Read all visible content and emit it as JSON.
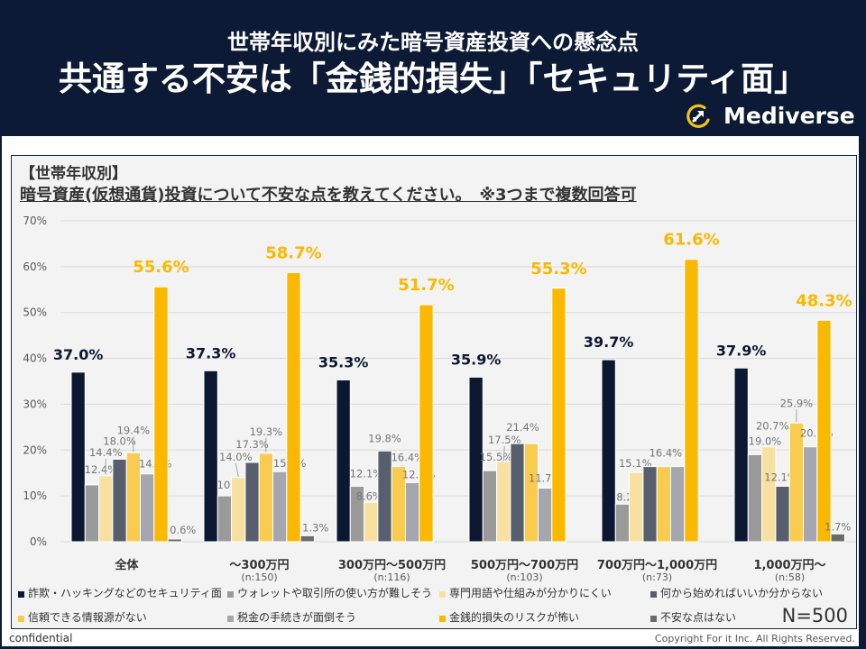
{
  "header": {
    "subtitle": "世帯年収別にみた暗号資産投資への懸念点",
    "title": "共通する不安は「金銭的損失」「セキュリティ面」",
    "logo_text": "Mediverse",
    "logo_icon": "rocket-crescent-icon"
  },
  "card": {
    "tag": "【世帯年収別】",
    "question": "暗号資産(仮想通貨)投資について不安な点を教えてください。　※3つまで複数回答可",
    "sample_size": "N=500"
  },
  "footer": {
    "left": "confidential",
    "right": "Copyright For it Inc. All Rights Reserved."
  },
  "chart_data": {
    "type": "bar",
    "title": "暗号資産(仮想通貨)投資について不安な点を教えてください。",
    "subtitle": "【世帯年収別】 ※3つまで複数回答可",
    "xlabel": "",
    "ylabel": "",
    "ylim": [
      0,
      70
    ],
    "grid": true,
    "legend": "bottom",
    "yticks": [
      {
        "value": 0,
        "label": "0%"
      },
      {
        "value": 10,
        "label": "10%"
      },
      {
        "value": 20,
        "label": "20%"
      },
      {
        "value": 30,
        "label": "30%"
      },
      {
        "value": 40,
        "label": "40%"
      },
      {
        "value": 50,
        "label": "50%"
      },
      {
        "value": 60,
        "label": "60%"
      },
      {
        "value": 70,
        "label": "70%"
      }
    ],
    "categories": [
      "全体",
      "～300万円",
      "300万円～500万円",
      "500万円～700万円",
      "700万円～1,000万円",
      "1,000万円～"
    ],
    "category_n": [
      null,
      "(n:150)",
      "(n:116)",
      "(n:103)",
      "(n:73)",
      "(n:58)"
    ],
    "series": [
      {
        "name": "詐欺・ハッキングなどのセキュリティ面",
        "color": "#0c1832",
        "values": [
          37.0,
          37.3,
          35.3,
          35.9,
          39.7,
          37.9
        ],
        "labels": [
          "37.0%",
          "37.3%",
          "35.3%",
          "35.9%",
          "39.7%",
          "37.9%"
        ]
      },
      {
        "name": "ウォレットや取引所の使い方が難しそう",
        "color": "#9a9a9a",
        "values": [
          12.4,
          10.0,
          12.1,
          15.5,
          8.2,
          19.0
        ],
        "labels": [
          "12.4%",
          "10.0%",
          "12.1%",
          "15.5%",
          "8.2%",
          "19.0%"
        ]
      },
      {
        "name": "専門用語や仕組みが分かりにくい",
        "color": "#f7e0a0",
        "values": [
          14.4,
          14.0,
          8.6,
          17.5,
          15.1,
          20.7
        ],
        "labels": [
          "14.4%",
          "14.0%",
          "8.6%",
          "17.5%",
          "15.1%",
          "20.7%"
        ]
      },
      {
        "name": "何から始めればいいか分からない",
        "color": "#575f6e",
        "values": [
          18.0,
          17.3,
          19.8,
          21.4,
          16.4,
          12.1
        ],
        "labels": [
          "18.0%",
          "17.3%",
          "19.8%",
          "21.4%",
          null,
          "12.1%"
        ]
      },
      {
        "name": "信頼できる情報源がない",
        "color": "#f9cc50",
        "values": [
          19.4,
          19.3,
          16.4,
          21.4,
          16.4,
          25.9
        ],
        "labels": [
          "19.4%",
          "19.3%",
          "16.4%",
          null,
          "16.4%",
          "25.9%"
        ]
      },
      {
        "name": "税金の手続きが面倒そう",
        "color": "#a4a7af",
        "values": [
          14.8,
          15.3,
          12.9,
          11.7,
          16.4,
          20.7
        ],
        "labels": [
          "14.8%",
          "15.3%",
          "12.9%",
          "11.7%",
          null,
          "20.7%"
        ]
      },
      {
        "name": "金銭的損失のリスクが怖い",
        "color": "#fbb800",
        "values": [
          55.6,
          58.7,
          51.7,
          55.3,
          61.6,
          48.3
        ],
        "labels": [
          "55.6%",
          "58.7%",
          "51.7%",
          "55.3%",
          "61.6%",
          "48.3%"
        ]
      },
      {
        "name": "不安な点はない",
        "color": "#6b6b6b",
        "values": [
          0.6,
          1.3,
          0,
          0,
          0,
          1.7
        ],
        "labels": [
          "0.6%",
          "1.3%",
          null,
          null,
          null,
          "1.7%"
        ]
      }
    ]
  }
}
